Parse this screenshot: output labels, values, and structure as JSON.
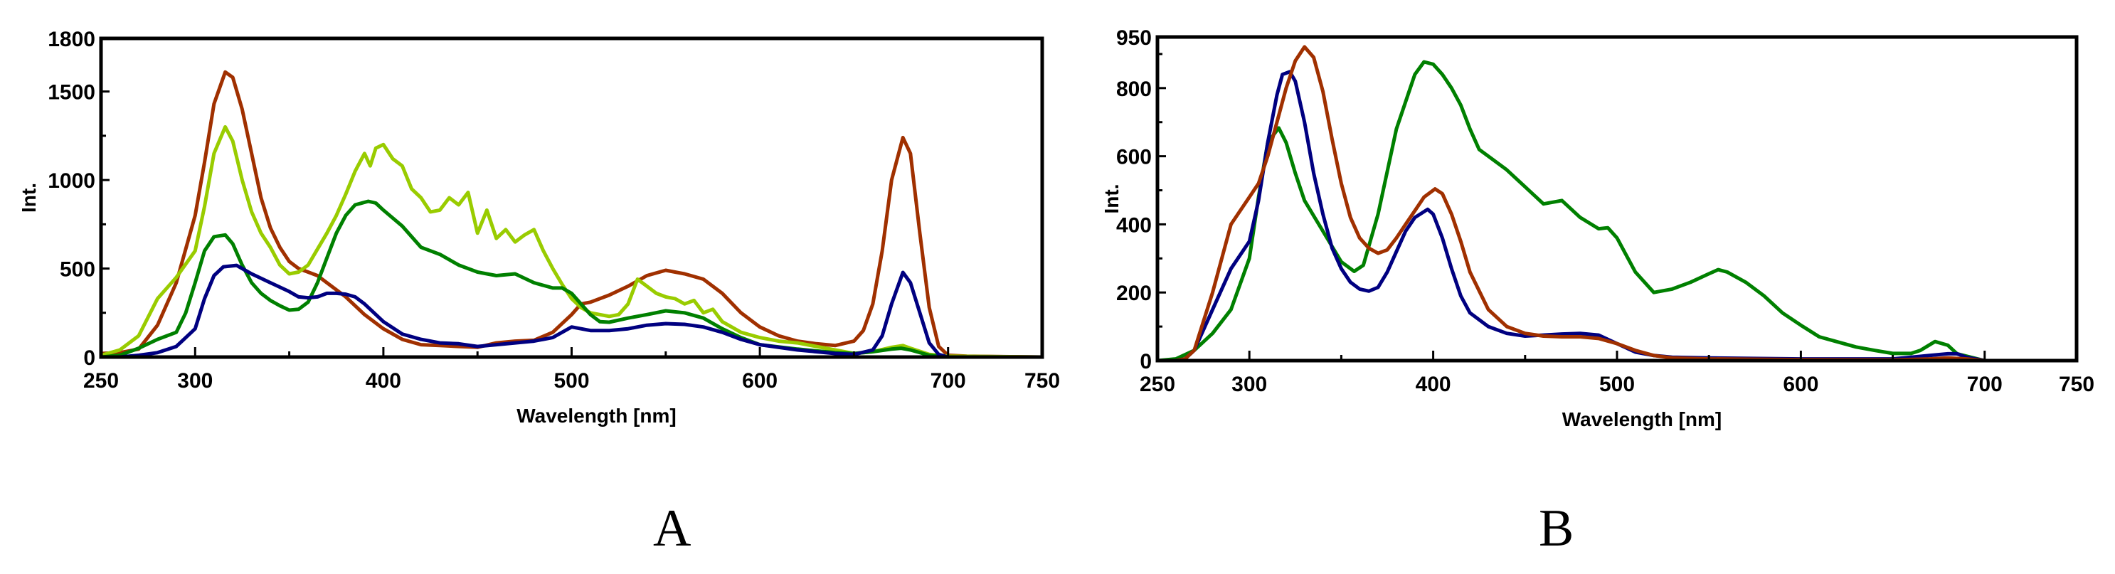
{
  "panels": [
    {
      "id": "A",
      "label": "A"
    },
    {
      "id": "B",
      "label": "B"
    }
  ],
  "chart_data": [
    {
      "type": "line",
      "panel": "A",
      "title": "",
      "xlabel": "Wavelength [nm]",
      "ylabel": "Int.",
      "xlim": [
        250,
        750
      ],
      "ylim": [
        0,
        1800
      ],
      "xticks": [
        250,
        300,
        400,
        500,
        600,
        700,
        750
      ],
      "xticks_minor": [
        350,
        450,
        550,
        650
      ],
      "yticks": [
        0,
        500,
        1000,
        1500,
        1800
      ],
      "yticks_minor": [
        250,
        750,
        1250
      ],
      "grid": false,
      "legend": null,
      "series": [
        {
          "name": "brown",
          "color": "#A03000",
          "x": [
            250,
            260,
            270,
            280,
            290,
            300,
            305,
            310,
            316,
            320,
            325,
            330,
            335,
            340,
            345,
            350,
            355,
            360,
            365,
            370,
            380,
            390,
            400,
            410,
            420,
            430,
            440,
            450,
            460,
            470,
            480,
            490,
            500,
            505,
            510,
            520,
            530,
            540,
            550,
            560,
            570,
            580,
            590,
            600,
            610,
            620,
            630,
            640,
            650,
            655,
            660,
            665,
            670,
            676,
            680,
            685,
            690,
            695,
            700,
            710,
            750
          ],
          "y": [
            20,
            25,
            45,
            180,
            420,
            800,
            1100,
            1430,
            1610,
            1580,
            1400,
            1150,
            900,
            730,
            620,
            540,
            500,
            480,
            460,
            420,
            340,
            240,
            160,
            100,
            70,
            65,
            60,
            55,
            80,
            90,
            95,
            140,
            240,
            300,
            310,
            350,
            400,
            460,
            490,
            470,
            440,
            360,
            250,
            170,
            120,
            90,
            75,
            65,
            90,
            150,
            300,
            600,
            1000,
            1240,
            1150,
            700,
            280,
            60,
            10,
            5,
            0
          ]
        },
        {
          "name": "light-green",
          "color": "#99CC00",
          "x": [
            250,
            260,
            270,
            280,
            290,
            300,
            305,
            310,
            316,
            320,
            325,
            330,
            335,
            340,
            345,
            350,
            355,
            360,
            365,
            370,
            375,
            380,
            385,
            390,
            393,
            396,
            400,
            405,
            410,
            415,
            420,
            425,
            430,
            435,
            440,
            445,
            450,
            455,
            460,
            465,
            470,
            475,
            480,
            485,
            490,
            495,
            500,
            505,
            510,
            515,
            520,
            525,
            530,
            535,
            540,
            545,
            550,
            555,
            560,
            565,
            570,
            575,
            580,
            590,
            600,
            610,
            620,
            630,
            640,
            650,
            660,
            670,
            676,
            680,
            690,
            700,
            750
          ],
          "y": [
            10,
            40,
            120,
            330,
            450,
            600,
            850,
            1150,
            1300,
            1220,
            1000,
            820,
            700,
            620,
            520,
            470,
            480,
            520,
            610,
            700,
            800,
            920,
            1050,
            1150,
            1080,
            1180,
            1200,
            1120,
            1080,
            950,
            900,
            820,
            830,
            900,
            860,
            930,
            700,
            830,
            670,
            720,
            650,
            690,
            720,
            600,
            500,
            410,
            330,
            280,
            250,
            240,
            230,
            240,
            300,
            440,
            400,
            360,
            340,
            330,
            300,
            320,
            250,
            270,
            200,
            140,
            110,
            90,
            80,
            60,
            40,
            20,
            30,
            55,
            65,
            50,
            15,
            5,
            0
          ]
        },
        {
          "name": "dark-green",
          "color": "#008000",
          "x": [
            250,
            260,
            270,
            280,
            290,
            295,
            300,
            305,
            310,
            316,
            320,
            325,
            330,
            335,
            340,
            345,
            350,
            355,
            360,
            365,
            370,
            375,
            380,
            385,
            392,
            396,
            400,
            410,
            420,
            430,
            440,
            450,
            460,
            470,
            480,
            490,
            495,
            500,
            505,
            510,
            515,
            520,
            530,
            540,
            550,
            560,
            570,
            580,
            590,
            600,
            620,
            640,
            650,
            660,
            670,
            675,
            680,
            690,
            700,
            750
          ],
          "y": [
            0,
            10,
            50,
            100,
            140,
            250,
            420,
            600,
            680,
            690,
            640,
            520,
            420,
            360,
            320,
            290,
            265,
            270,
            310,
            420,
            560,
            700,
            800,
            860,
            880,
            870,
            830,
            740,
            620,
            580,
            520,
            480,
            460,
            470,
            420,
            390,
            390,
            360,
            300,
            240,
            200,
            197,
            220,
            240,
            261,
            250,
            220,
            160,
            110,
            70,
            45,
            25,
            20,
            30,
            45,
            50,
            40,
            10,
            0,
            0
          ]
        },
        {
          "name": "blue",
          "color": "#000080",
          "x": [
            250,
            260,
            270,
            280,
            290,
            300,
            305,
            310,
            315,
            322,
            325,
            330,
            340,
            350,
            355,
            360,
            365,
            370,
            375,
            380,
            385,
            390,
            400,
            410,
            420,
            430,
            440,
            450,
            460,
            470,
            480,
            490,
            500,
            510,
            520,
            530,
            540,
            550,
            560,
            570,
            580,
            590,
            600,
            620,
            640,
            650,
            660,
            665,
            670,
            676,
            680,
            685,
            690,
            695,
            700,
            750
          ],
          "y": [
            0,
            0,
            10,
            25,
            60,
            160,
            330,
            460,
            510,
            518,
            500,
            470,
            420,
            370,
            340,
            335,
            340,
            360,
            360,
            355,
            340,
            300,
            200,
            130,
            100,
            80,
            75,
            60,
            70,
            80,
            90,
            110,
            170,
            150,
            150,
            160,
            180,
            189,
            185,
            170,
            140,
            100,
            70,
            40,
            20,
            15,
            40,
            120,
            300,
            478,
            420,
            250,
            80,
            15,
            0,
            0
          ]
        }
      ]
    },
    {
      "type": "line",
      "panel": "B",
      "title": "",
      "xlabel": "Wavelength [nm]",
      "ylabel": "Int.",
      "xlim": [
        250,
        750
      ],
      "ylim": [
        0,
        950
      ],
      "xticks": [
        250,
        300,
        400,
        500,
        600,
        700,
        750
      ],
      "xticks_minor": [
        350,
        450,
        550,
        650
      ],
      "yticks": [
        0,
        200,
        400,
        600,
        800,
        950
      ],
      "yticks_minor": [
        100,
        300,
        500,
        700,
        900
      ],
      "grid": false,
      "legend": null,
      "series": [
        {
          "name": "green",
          "color": "#008000",
          "x": [
            250,
            260,
            270,
            280,
            290,
            300,
            305,
            310,
            316,
            320,
            325,
            330,
            340,
            350,
            357,
            362,
            370,
            380,
            390,
            395,
            400,
            405,
            410,
            415,
            420,
            425,
            430,
            440,
            450,
            460,
            470,
            480,
            490,
            495,
            500,
            510,
            520,
            530,
            540,
            550,
            555,
            560,
            570,
            580,
            590,
            600,
            610,
            620,
            630,
            640,
            650,
            660,
            665,
            673,
            680,
            685,
            700,
            750
          ],
          "y": [
            0,
            5,
            30,
            80,
            150,
            300,
            480,
            640,
            683,
            640,
            550,
            470,
            380,
            290,
            262,
            280,
            430,
            680,
            840,
            877,
            870,
            840,
            800,
            750,
            680,
            620,
            600,
            560,
            510,
            460,
            470,
            420,
            387,
            390,
            360,
            260,
            200,
            210,
            230,
            255,
            267,
            260,
            230,
            190,
            140,
            104,
            70,
            55,
            40,
            30,
            21,
            21,
            30,
            56,
            45,
            20,
            0,
            0
          ]
        },
        {
          "name": "blue",
          "color": "#000080",
          "x": [
            250,
            260,
            265,
            270,
            280,
            290,
            300,
            305,
            310,
            315,
            318,
            322,
            325,
            330,
            335,
            340,
            345,
            350,
            355,
            360,
            365,
            370,
            375,
            380,
            385,
            390,
            397,
            400,
            405,
            410,
            415,
            420,
            430,
            440,
            450,
            460,
            470,
            480,
            490,
            500,
            510,
            520,
            530,
            550,
            600,
            650,
            660,
            670,
            680,
            685,
            690,
            700,
            750
          ],
          "y": [
            0,
            0,
            5,
            30,
            150,
            270,
            350,
            470,
            640,
            780,
            840,
            848,
            820,
            700,
            550,
            430,
            330,
            270,
            230,
            210,
            204,
            215,
            260,
            320,
            380,
            420,
            444,
            430,
            360,
            270,
            190,
            140,
            100,
            80,
            72,
            75,
            78,
            80,
            75,
            50,
            25,
            15,
            10,
            8,
            5,
            5,
            10,
            15,
            20,
            20,
            10,
            0,
            0
          ]
        },
        {
          "name": "brown",
          "color": "#A03000",
          "x": [
            250,
            260,
            265,
            270,
            280,
            290,
            300,
            305,
            310,
            315,
            320,
            325,
            330,
            335,
            340,
            345,
            350,
            355,
            360,
            365,
            370,
            375,
            380,
            385,
            390,
            395,
            401,
            405,
            410,
            415,
            420,
            430,
            440,
            450,
            460,
            470,
            480,
            490,
            500,
            510,
            520,
            530,
            550,
            600,
            650,
            670,
            680,
            690,
            700,
            750
          ],
          "y": [
            0,
            0,
            5,
            30,
            200,
            400,
            480,
            520,
            600,
            700,
            800,
            880,
            921,
            890,
            790,
            650,
            520,
            420,
            360,
            330,
            315,
            325,
            360,
            400,
            440,
            480,
            504,
            490,
            430,
            350,
            260,
            150,
            100,
            80,
            72,
            70,
            70,
            65,
            50,
            30,
            15,
            8,
            5,
            3,
            2,
            5,
            8,
            5,
            0,
            0
          ]
        }
      ]
    }
  ]
}
